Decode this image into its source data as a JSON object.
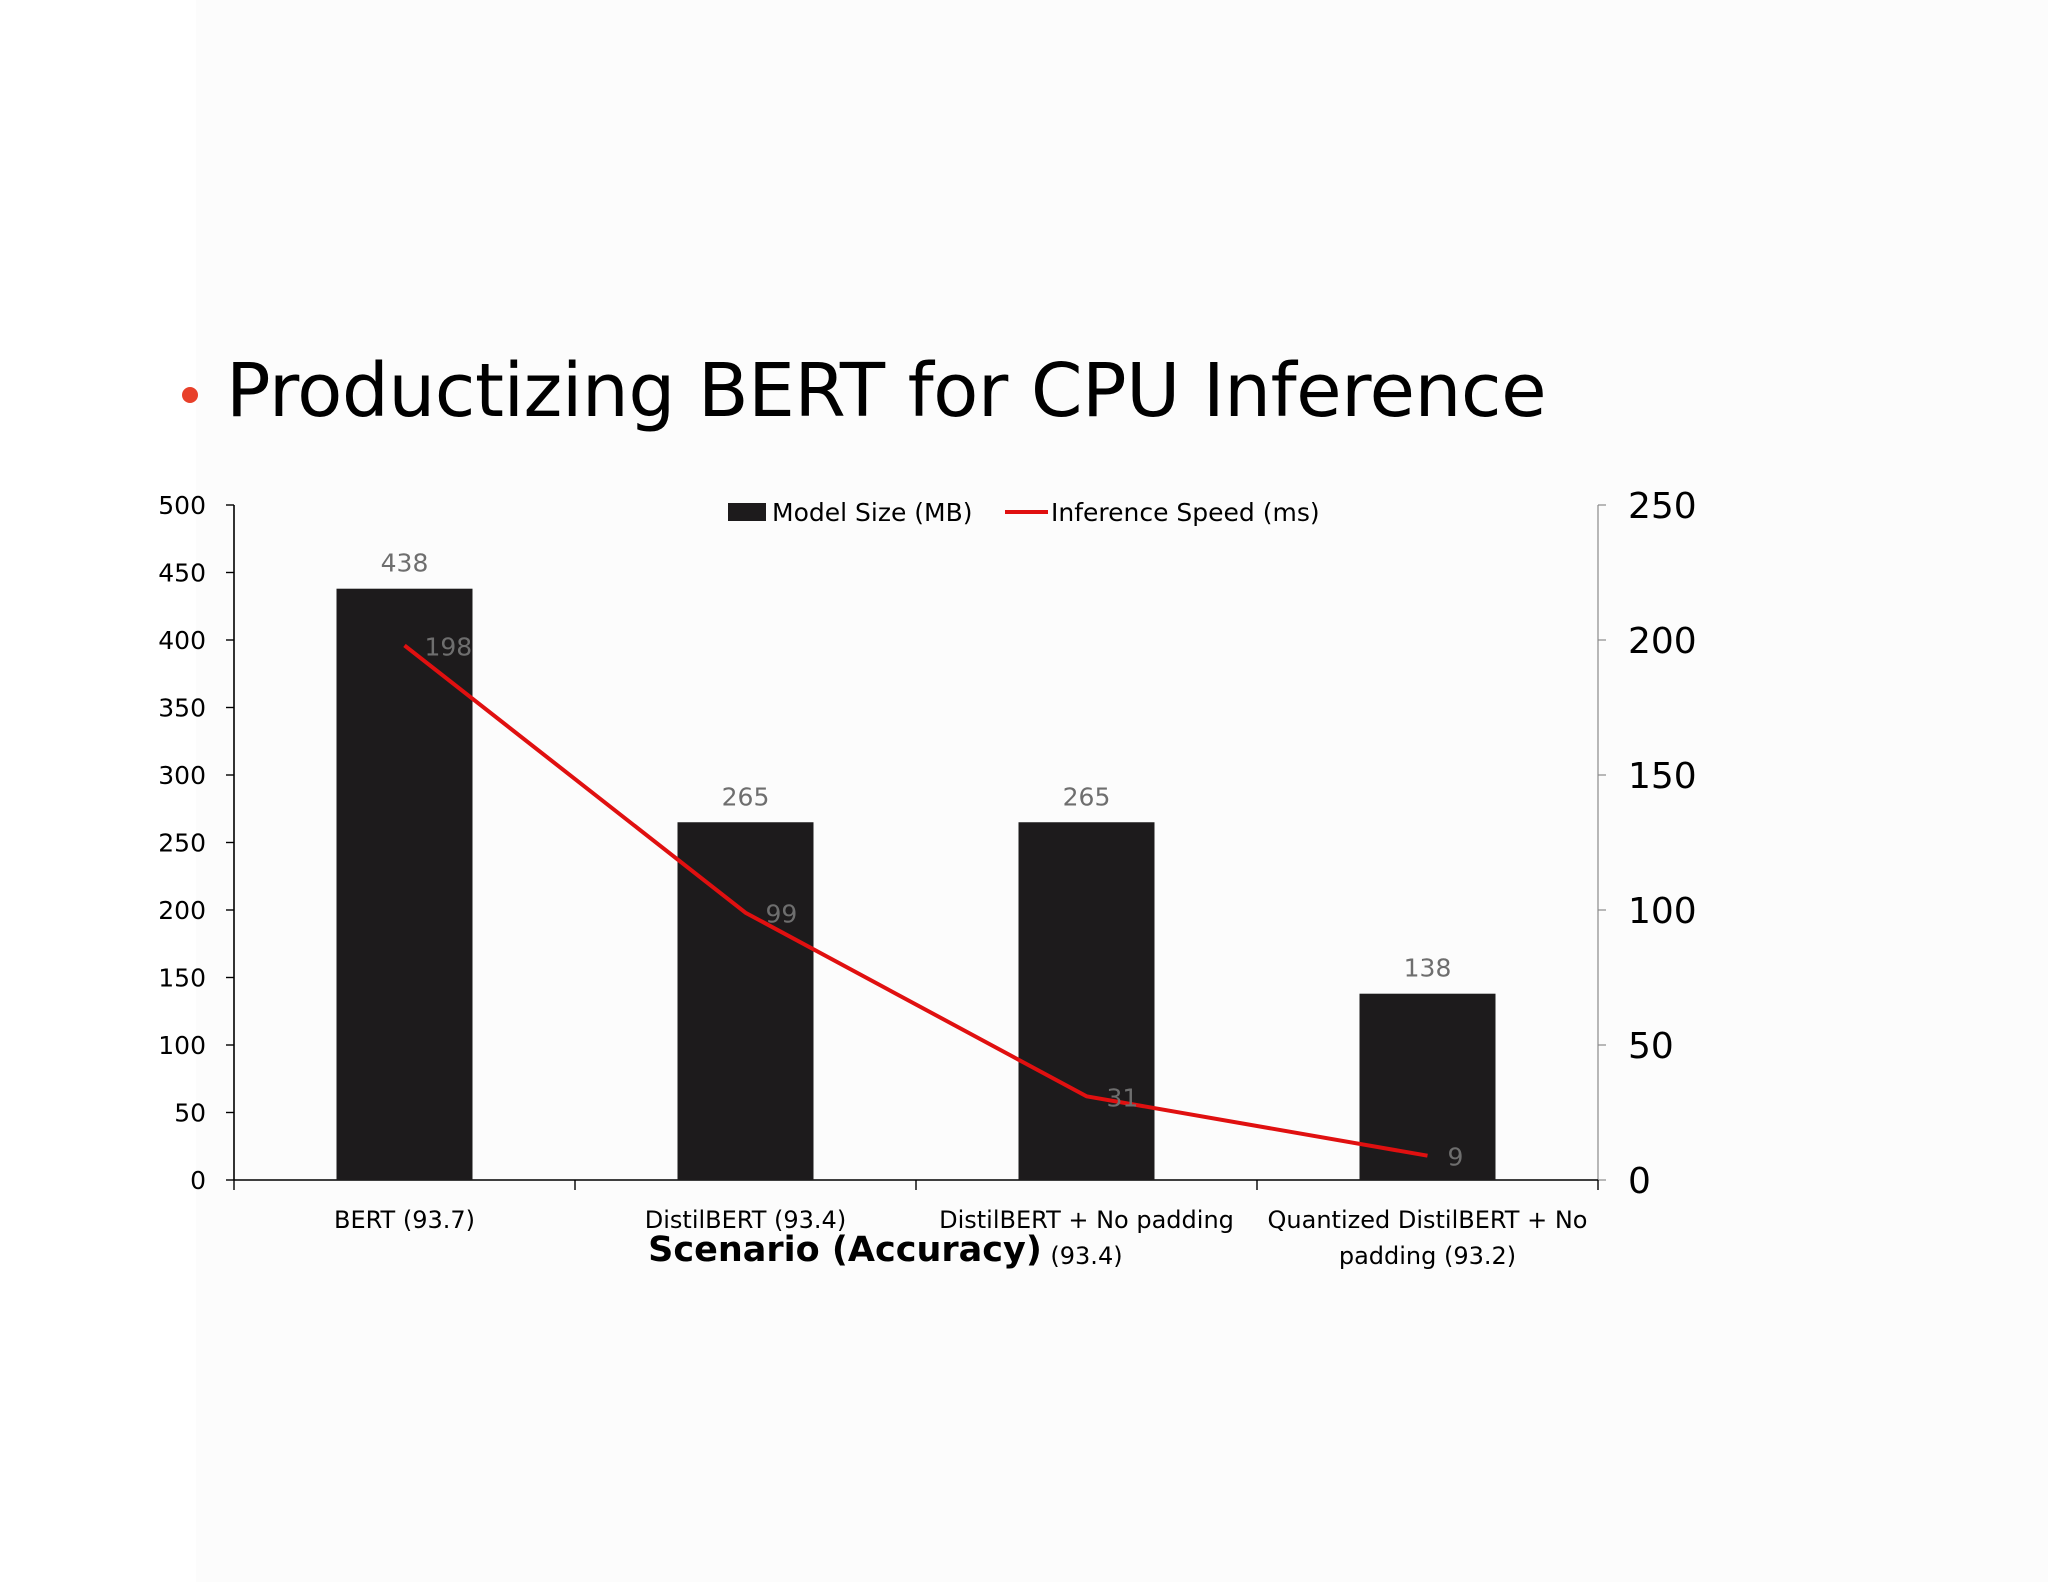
{
  "slide": {
    "title": "Productizing BERT for CPU Inference",
    "bullet_color": "#e8402a"
  },
  "chart_data": {
    "type": "bar",
    "categories": [
      [
        "BERT (93.7)"
      ],
      [
        "DistilBERT (93.4)"
      ],
      [
        "DistilBERT + No padding",
        "(93.4)"
      ],
      [
        "Quantized DistilBERT + No",
        "padding (93.2)"
      ]
    ],
    "xlabel": "Scenario (Accuracy)",
    "series": [
      {
        "name": "Model Size (MB)",
        "type": "bar",
        "axis": "left",
        "color": "#1d1b1c",
        "values": [
          438,
          265,
          265,
          138
        ]
      },
      {
        "name": "Inference Speed (ms)",
        "type": "line",
        "axis": "right",
        "color": "#e01010",
        "values": [
          198,
          99,
          31,
          9
        ]
      }
    ],
    "y_left": {
      "ylim": [
        0,
        500
      ],
      "ticks": [
        0,
        50,
        100,
        150,
        200,
        250,
        300,
        350,
        400,
        450,
        500
      ]
    },
    "y_right": {
      "ylim": [
        0,
        250
      ],
      "ticks": [
        0,
        50,
        100,
        150,
        200,
        250
      ]
    },
    "legend_position": "top-center",
    "grid": false,
    "data_labels": true
  }
}
